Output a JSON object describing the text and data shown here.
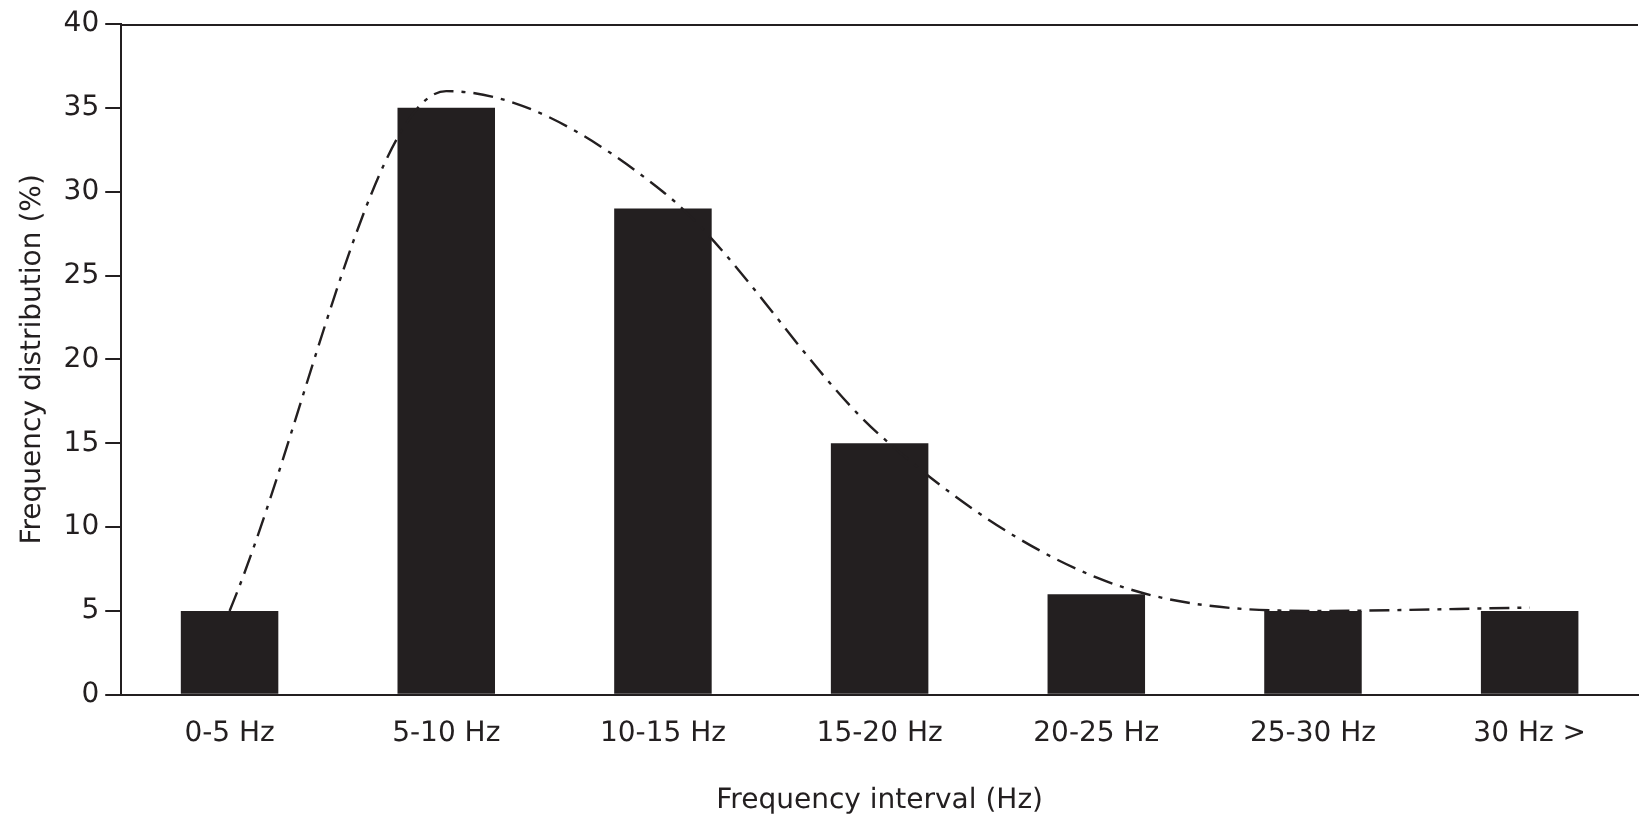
{
  "chart_data": {
    "type": "bar",
    "xlabel": "Frequency interval (Hz)",
    "ylabel": "Frequency distribution (%)",
    "categories": [
      "0-5 Hz",
      "5-10 Hz",
      "10-15 Hz",
      "15-20 Hz",
      "20-25 Hz",
      "25-30 Hz",
      "30 Hz >"
    ],
    "series": [
      {
        "color": "#231f20",
        "values": [
          5,
          35,
          29,
          15,
          6,
          5,
          5
        ]
      },
      {
        "type": "line",
        "color": "#231f20",
        "line_style": "dashed",
        "marker": "none",
        "values": [
          5,
          36,
          30,
          15.5,
          7,
          5,
          5.2
        ]
      }
    ],
    "ylim": [
      0,
      40
    ],
    "yticks": [
      0,
      5,
      10,
      15,
      20,
      25,
      30,
      35,
      40
    ],
    "grid": false,
    "legend": false
  }
}
